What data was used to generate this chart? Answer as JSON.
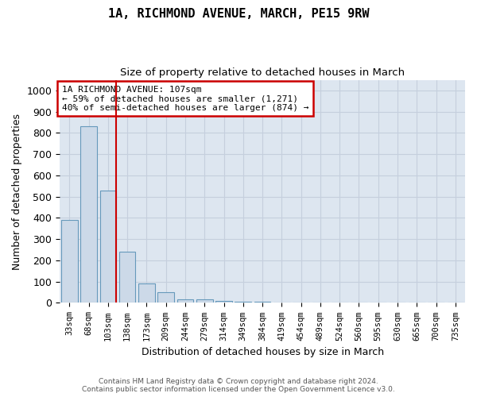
{
  "title": "1A, RICHMOND AVENUE, MARCH, PE15 9RW",
  "subtitle": "Size of property relative to detached houses in March",
  "xlabel": "Distribution of detached houses by size in March",
  "ylabel": "Number of detached properties",
  "bar_color": "#ccd9e8",
  "bar_edge_color": "#6699bb",
  "grid_color": "#c5cfdd",
  "background_color": "#dde6f0",
  "marker_line_color": "#cc0000",
  "annotation_box_color": "#cc0000",
  "categories": [
    "33sqm",
    "68sqm",
    "103sqm",
    "138sqm",
    "173sqm",
    "209sqm",
    "244sqm",
    "279sqm",
    "314sqm",
    "349sqm",
    "384sqm",
    "419sqm",
    "454sqm",
    "489sqm",
    "524sqm",
    "560sqm",
    "595sqm",
    "630sqm",
    "665sqm",
    "700sqm",
    "735sqm"
  ],
  "values": [
    390,
    830,
    530,
    240,
    93,
    50,
    18,
    16,
    10,
    6,
    5,
    0,
    0,
    0,
    0,
    0,
    0,
    0,
    0,
    0,
    0
  ],
  "ylim": [
    0,
    1050
  ],
  "yticks": [
    0,
    100,
    200,
    300,
    400,
    500,
    600,
    700,
    800,
    900,
    1000
  ],
  "marker_bar_index": 2,
  "annotation_text": "1A RICHMOND AVENUE: 107sqm\n← 59% of detached houses are smaller (1,271)\n40% of semi-detached houses are larger (874) →",
  "footer_line1": "Contains HM Land Registry data © Crown copyright and database right 2024.",
  "footer_line2": "Contains public sector information licensed under the Open Government Licence v3.0."
}
